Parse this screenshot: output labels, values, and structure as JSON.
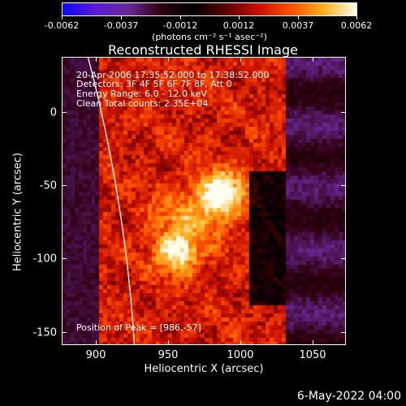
{
  "chart_data": {
    "type": "heatmap",
    "title": "Reconstructed RHESSI Image",
    "xlabel": "Heliocentric X (arcsec)",
    "ylabel": "Heliocentric Y (arcsec)",
    "xlim": [
      880,
      1070
    ],
    "ylim": [
      -158,
      35
    ],
    "xticks": [
      900,
      950,
      1000,
      1050
    ],
    "yticks": [
      0,
      -50,
      -100,
      -150
    ],
    "colorbar": {
      "range": [
        -0.0062,
        0.0062
      ],
      "ticks": [
        "-0.0062",
        "-0.0037",
        "-0.0012",
        "0.0012",
        "0.0037",
        "0.0062"
      ],
      "units": "(photons cm⁻² s⁻¹ asec⁻²)",
      "colors": [
        "#0a0aff",
        "#5a1ad0",
        "#6a2898",
        "#300010",
        "#000000",
        "#5a0000",
        "#c81000",
        "#ff5000",
        "#ffb020",
        "#fffff0"
      ]
    },
    "sources": [
      {
        "x": 986,
        "y": -57,
        "peak": 0.0062
      },
      {
        "x": 957,
        "y": -97,
        "peak": 0.0052
      },
      {
        "x": 960,
        "y": -75,
        "peak": 0.0034
      }
    ],
    "annotations": [
      "20-Apr-2006 17:35:52.000 to 17:38:52.000",
      "Detectors: 3F 4F 5F 6F 7F 8F, Att 0",
      "Energy Range: 6.0 - 12.0 keV",
      "Clean     Total counts: 2.35E+04"
    ],
    "peak_text": "Position of Peak = [986,-57]",
    "limb_color": "#ffffff"
  },
  "footer": {
    "date": "6-May-2022 04:00"
  }
}
